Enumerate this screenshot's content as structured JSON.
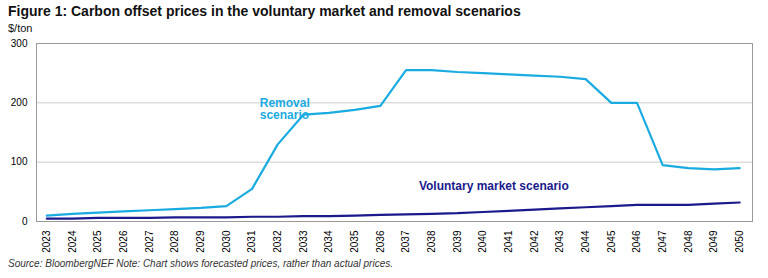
{
  "chart_data": {
    "type": "line",
    "title": "Figure 1: Carbon offset prices in the voluntary market and removal scenarios",
    "ylabel": "$/ton",
    "caption": "Source: BloombergNEF   Note: Chart shows forecasted prices, rather than actual prices.",
    "x": [
      2023,
      2024,
      2025,
      2026,
      2027,
      2028,
      2029,
      2030,
      2031,
      2032,
      2033,
      2034,
      2035,
      2036,
      2037,
      2038,
      2039,
      2040,
      2041,
      2042,
      2043,
      2044,
      2045,
      2046,
      2047,
      2048,
      2049,
      2050
    ],
    "series": [
      {
        "color": "#1AABE0",
        "values": [
          10,
          13,
          15,
          17,
          19,
          21,
          23,
          26,
          55,
          130,
          180,
          183,
          188,
          195,
          255,
          255,
          252,
          250,
          248,
          246,
          244,
          240,
          200,
          200,
          95,
          90,
          88,
          90
        ]
      },
      {
        "color": "#1A1A8C",
        "values": [
          5,
          5,
          6,
          6,
          6,
          7,
          7,
          7,
          8,
          8,
          9,
          9,
          10,
          11,
          12,
          13,
          14,
          16,
          18,
          20,
          22,
          24,
          26,
          28,
          28,
          28,
          30,
          32
        ]
      }
    ],
    "annotations": [
      {
        "text": "Removal\nscenario",
        "x": 2031.3,
        "y": 190,
        "color": "#1AABE0"
      },
      {
        "text": "Voluntary market scenario",
        "x": 2037.5,
        "y": 60,
        "color": "#1A1A8C"
      }
    ],
    "xlim": [
      2022.6,
      2050.5
    ],
    "xticks": [
      2023,
      2024,
      2025,
      2026,
      2027,
      2028,
      2029,
      2030,
      2031,
      2032,
      2033,
      2034,
      2035,
      2036,
      2037,
      2038,
      2039,
      2040,
      2041,
      2042,
      2043,
      2044,
      2045,
      2046,
      2047,
      2048,
      2049,
      2050
    ],
    "ylim": [
      0,
      300
    ],
    "yticks": [
      0,
      100,
      200,
      300
    ],
    "grid": true
  }
}
